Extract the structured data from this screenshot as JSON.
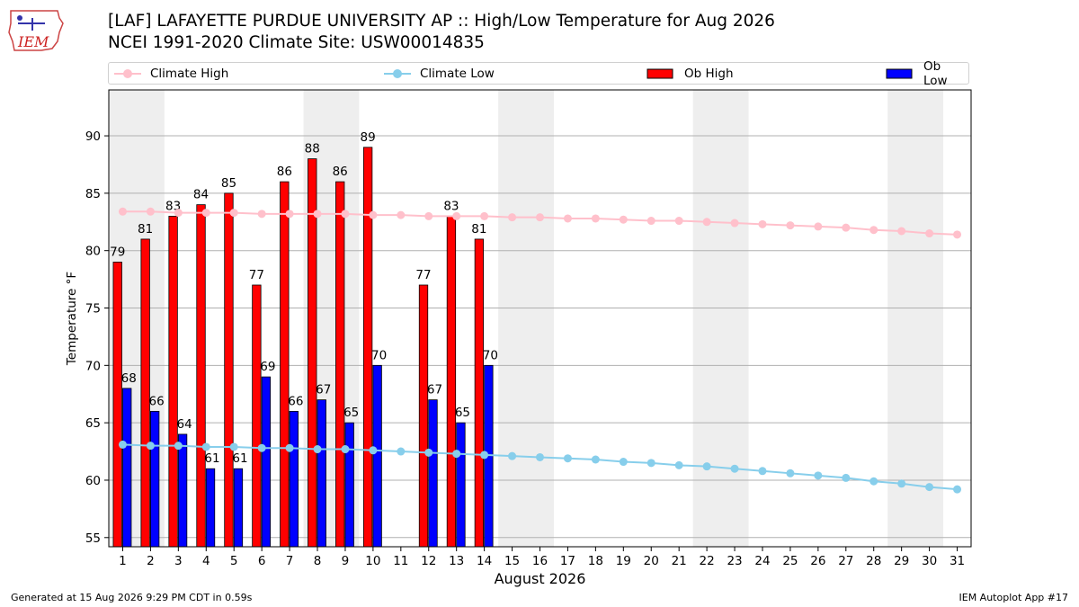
{
  "title_line1": "[LAF] LAFAYETTE PURDUE UNIVERSITY AP :: High/Low Temperature for Aug 2026",
  "title_line2": "NCEI 1991-2020 Climate Site: USW00014835",
  "logo_text": "IEM",
  "footer_left": "Generated at 15 Aug 2026 9:29 PM CDT in 0.59s",
  "footer_right": "IEM Autoplot App #17",
  "legend": [
    "Climate High",
    "Climate Low",
    "Ob High",
    "Ob Low"
  ],
  "colors": {
    "ob_high": "#ff0000",
    "ob_low": "#0000ff",
    "climate_high": "#ffc0cb",
    "climate_low": "#87ceeb",
    "weekend_band": "#eeeeee",
    "grid": "#b0b0b0"
  },
  "chart_data": {
    "type": "bar",
    "xlabel": "August 2026",
    "ylabel": "Temperature °F",
    "ylim": [
      54.2,
      94
    ],
    "yticks": [
      55,
      60,
      65,
      70,
      75,
      80,
      85,
      90
    ],
    "days": [
      1,
      2,
      3,
      4,
      5,
      6,
      7,
      8,
      9,
      10,
      11,
      12,
      13,
      14,
      15,
      16,
      17,
      18,
      19,
      20,
      21,
      22,
      23,
      24,
      25,
      26,
      27,
      28,
      29,
      30,
      31
    ],
    "weekend_bands": [
      [
        1,
        2
      ],
      [
        8,
        9
      ],
      [
        15,
        16
      ],
      [
        22,
        23
      ],
      [
        29,
        30
      ]
    ],
    "grid": true,
    "legend_position": "top",
    "series": [
      {
        "name": "Ob High",
        "type": "bar",
        "values": [
          79,
          81,
          83,
          84,
          85,
          77,
          86,
          88,
          86,
          89,
          null,
          77,
          83,
          81,
          null,
          null,
          null,
          null,
          null,
          null,
          null,
          null,
          null,
          null,
          null,
          null,
          null,
          null,
          null,
          null,
          null
        ]
      },
      {
        "name": "Ob Low",
        "type": "bar",
        "values": [
          68,
          66,
          64,
          61,
          61,
          69,
          66,
          67,
          65,
          70,
          null,
          67,
          65,
          70,
          null,
          null,
          null,
          null,
          null,
          null,
          null,
          null,
          null,
          null,
          null,
          null,
          null,
          null,
          null,
          null,
          null
        ]
      },
      {
        "name": "Climate High",
        "type": "line",
        "values": [
          83.4,
          83.4,
          83.3,
          83.3,
          83.3,
          83.2,
          83.2,
          83.2,
          83.2,
          83.1,
          83.1,
          83.0,
          83.0,
          83.0,
          82.9,
          82.9,
          82.8,
          82.8,
          82.7,
          82.6,
          82.6,
          82.5,
          82.4,
          82.3,
          82.2,
          82.1,
          82.0,
          81.8,
          81.7,
          81.5,
          81.4
        ]
      },
      {
        "name": "Climate Low",
        "type": "line",
        "values": [
          63.1,
          63.0,
          63.0,
          62.9,
          62.9,
          62.8,
          62.8,
          62.7,
          62.7,
          62.6,
          62.5,
          62.4,
          62.3,
          62.2,
          62.1,
          62.0,
          61.9,
          61.8,
          61.6,
          61.5,
          61.3,
          61.2,
          61.0,
          60.8,
          60.6,
          60.4,
          60.2,
          59.9,
          59.7,
          59.4,
          59.2
        ]
      }
    ]
  }
}
